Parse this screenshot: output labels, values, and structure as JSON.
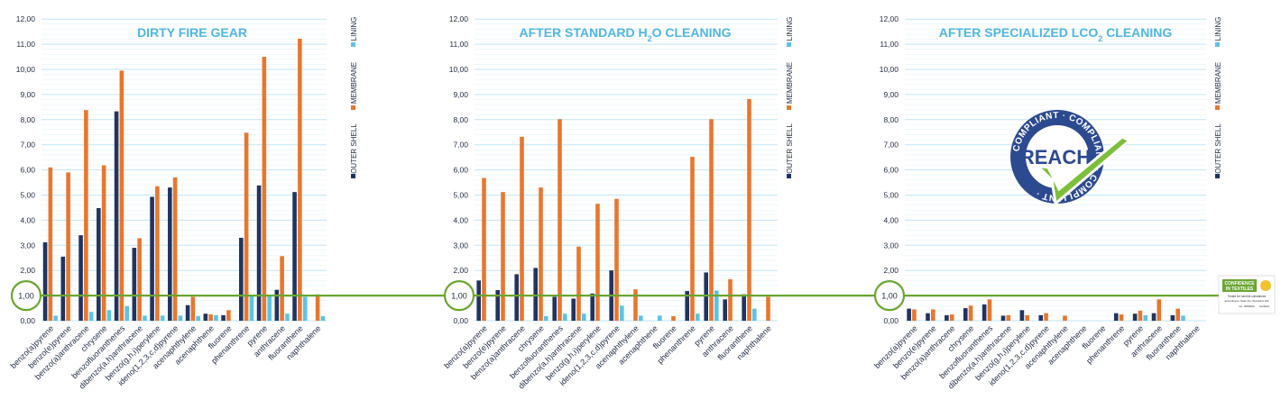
{
  "theme": {
    "outer_shell": "#1f3461",
    "membrane": "#e8772e",
    "lining": "#5cc3e6",
    "grid": "#bfe6f5",
    "title": "#4fb6e3",
    "threshold": "#6aa632",
    "axis_text": "#1f2b44"
  },
  "legend": {
    "outer_shell": "OUTER SHELL",
    "membrane": "MEMBRANE",
    "lining": "LINING"
  },
  "threshold": {
    "value": 1.0,
    "label": "1,00"
  },
  "reach_badge": {
    "text": "REACH",
    "ring_text": "COMPLIANT · COMPLIANT · COMPLIANT ·",
    "icon": "checkmark-icon"
  },
  "oeko_badge": {
    "line1": "CONFIDENCE",
    "line2": "IN TEXTILES",
    "line3": "Tested for harmful substances",
    "line4": "according to Oeko-Tex Standard 100",
    "line5": "No. 0000000",
    "line6": "Certified"
  },
  "chart_data": [
    {
      "type": "bar",
      "title": "DIRTY FIRE GEAR",
      "ylim": [
        0,
        12
      ],
      "yticks": [
        "0,00",
        "1,00",
        "2,00",
        "3,00",
        "4,00",
        "5,00",
        "6,00",
        "7,00",
        "8,00",
        "9,00",
        "10,00",
        "11,00",
        "12,00"
      ],
      "categories": [
        "benzo(a)pyrene",
        "benzo(e)pyrene",
        "benzo(a)anthracene",
        "chrysene",
        "benzofluoranthenes",
        "dibenzo(a,h)anthracene",
        "benzo(g,h,i)perylene",
        "ideno(1,2,3,c,d)pyrene",
        "acenaphthylene",
        "acenaphthene",
        "fluorene",
        "phenanthrene",
        "pyrene",
        "anthracene",
        "fluoranthene",
        "naphthalene"
      ],
      "series": [
        {
          "name": "OUTER SHELL",
          "values": [
            3.12,
            2.55,
            3.4,
            4.48,
            8.33,
            2.9,
            4.93,
            5.3,
            0.62,
            0.28,
            0.22,
            3.3,
            5.38,
            1.23,
            5.12,
            0
          ]
        },
        {
          "name": "MEMBRANE",
          "values": [
            6.1,
            5.9,
            8.38,
            6.18,
            9.95,
            3.28,
            5.35,
            5.7,
            0.95,
            0.25,
            0.42,
            7.48,
            10.5,
            2.57,
            11.22,
            1.05
          ]
        },
        {
          "name": "LINING",
          "values": [
            0.2,
            0,
            0.35,
            0.42,
            0.58,
            0.2,
            0.2,
            0.2,
            0.18,
            0.22,
            0,
            0.98,
            1.02,
            0.28,
            0.95,
            0.18
          ]
        }
      ]
    },
    {
      "type": "bar",
      "title": "AFTER STANDARD H2O CLEANING",
      "title_parts": [
        "AFTER STANDARD H",
        "2",
        "O CLEANING"
      ],
      "ylim": [
        0,
        12
      ],
      "yticks": [
        "0,00",
        "1,00",
        "2,00",
        "3,00",
        "4,00",
        "5,00",
        "6,00",
        "7,00",
        "8,00",
        "9,00",
        "10,00",
        "11,00",
        "12,00"
      ],
      "categories": [
        "benzo(a)pyrene",
        "benzo(e)pyrene",
        "benzo(a)anthracene",
        "chrysene",
        "benzofluoranthenes",
        "dibenzo(a,h)anthracene",
        "benzo(g,h,i)perylene",
        "ideno(1,2,3,c,d)pyrene",
        "acenaphthylene",
        "acenaphthene",
        "fluorene",
        "phenanthrene",
        "pyrene",
        "anthracene",
        "fluoranthene",
        "naphthalene"
      ],
      "series": [
        {
          "name": "OUTER SHELL",
          "values": [
            1.6,
            1.22,
            1.85,
            2.1,
            0.95,
            0.88,
            1.08,
            2.0,
            0,
            0,
            0,
            1.18,
            1.92,
            0.85,
            1.05,
            0
          ]
        },
        {
          "name": "MEMBRANE",
          "values": [
            5.68,
            5.12,
            7.32,
            5.3,
            8.02,
            2.95,
            4.65,
            4.85,
            1.25,
            0,
            0.18,
            6.52,
            8.02,
            1.65,
            8.82,
            0.95
          ]
        },
        {
          "name": "LINING",
          "values": [
            0,
            0,
            0,
            0.18,
            0.28,
            0.28,
            0,
            0.6,
            0.2,
            0.2,
            0,
            0.28,
            1.2,
            0,
            0.48,
            0
          ]
        }
      ]
    },
    {
      "type": "bar",
      "title": "AFTER SPECIALIZED LCO2 CLEANING",
      "title_parts": [
        "AFTER SPECIALIZED LCO",
        "2",
        " CLEANING"
      ],
      "ylim": [
        0,
        12
      ],
      "yticks": [
        "0,00",
        "1,00",
        "2,00",
        "3,00",
        "4,00",
        "5,00",
        "6,00",
        "7,00",
        "8,00",
        "9,00",
        "10,00",
        "11,00",
        "12,00"
      ],
      "categories": [
        "benzo(a)pyrene",
        "benzo(e)pyrene",
        "benzo(a)anthracene",
        "chrysene",
        "benzofluoranthenes",
        "dibenzo(a,h)anthracene",
        "benzo(g,h,i)perylene",
        "ideno(1,2,3,c,d)pyrene",
        "acenaphthylene",
        "acenaphthene",
        "fluorene",
        "phenanthrene",
        "pyrene",
        "anthracene",
        "fluoranthene",
        "naphthalene"
      ],
      "series": [
        {
          "name": "OUTER SHELL",
          "values": [
            0.48,
            0.3,
            0.22,
            0.5,
            0.65,
            0.2,
            0.42,
            0.22,
            0,
            0,
            0,
            0.3,
            0.28,
            0.3,
            0.22,
            0
          ]
        },
        {
          "name": "MEMBRANE",
          "values": [
            0.45,
            0.45,
            0.25,
            0.6,
            0.85,
            0.22,
            0.22,
            0.3,
            0.2,
            0,
            0,
            0.25,
            0.4,
            0.85,
            0.48,
            0
          ]
        },
        {
          "name": "LINING",
          "values": [
            0,
            0,
            0,
            0,
            0,
            0,
            0,
            0,
            0,
            0,
            0,
            0,
            0.22,
            0,
            0.2,
            0
          ]
        }
      ]
    }
  ]
}
